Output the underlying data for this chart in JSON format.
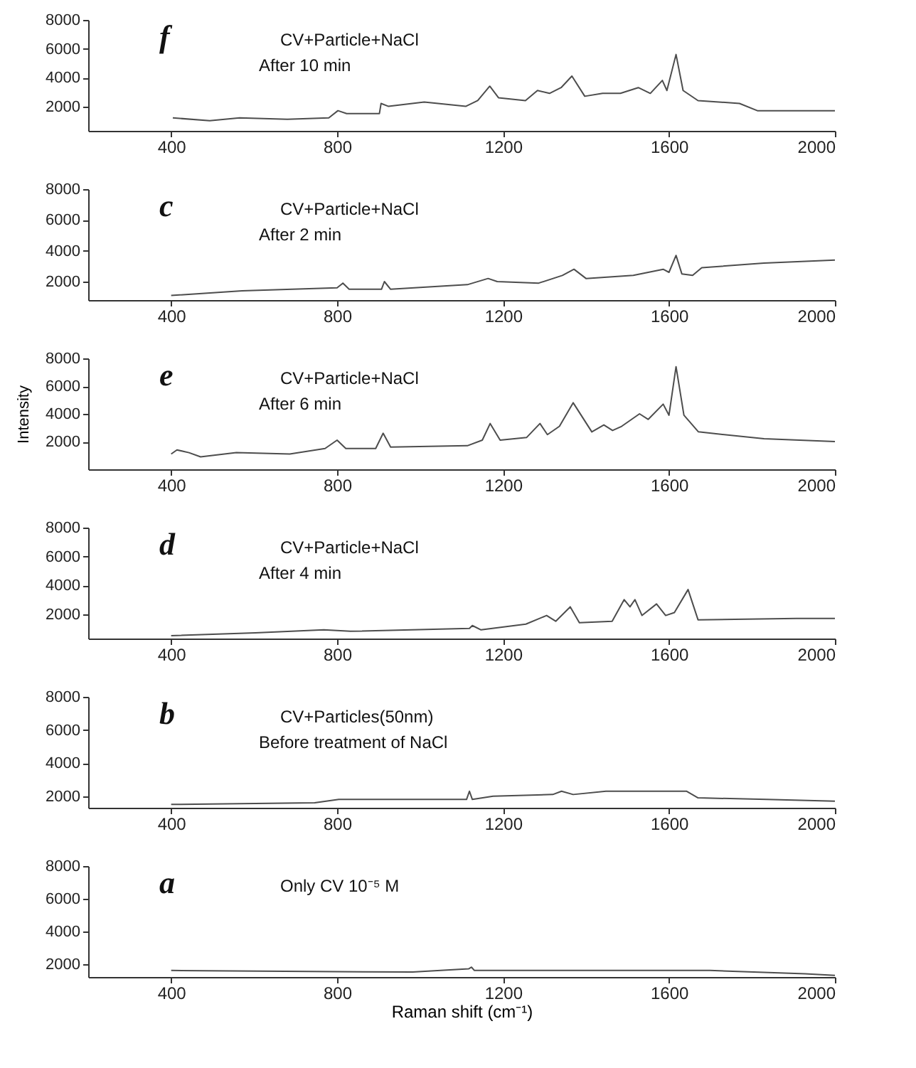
{
  "chart_data": [
    {
      "type": "line",
      "color": "#4d4d4d",
      "annotations": [
        "f",
        "CV+Particle+NaCl",
        "After 10 min"
      ],
      "xlim": [
        200,
        2000
      ],
      "xticks": [
        400,
        800,
        1200,
        1600,
        2000
      ],
      "ylim": [
        300,
        8000
      ],
      "yticks": [
        2000,
        4000,
        6000,
        8000
      ],
      "grid": false,
      "x": [
        404,
        493,
        565,
        680,
        780,
        802,
        823,
        902,
        906,
        924,
        1010,
        1110,
        1139,
        1168,
        1189,
        1254,
        1283,
        1312,
        1340,
        1366,
        1397,
        1440,
        1483,
        1526,
        1555,
        1584,
        1595,
        1617,
        1634,
        1670,
        1770,
        1813,
        1928,
        2000
      ],
      "values": [
        1200,
        1000,
        1200,
        1100,
        1200,
        1700,
        1500,
        1500,
        2200,
        2000,
        2300,
        2000,
        2400,
        3400,
        2600,
        2400,
        3100,
        2900,
        3300,
        4100,
        2700,
        2900,
        2900,
        3300,
        2900,
        3800,
        3100,
        5600,
        3100,
        2400,
        2200,
        1700,
        1700,
        1700
      ]
    },
    {
      "type": "line",
      "color": "#4d4d4d",
      "annotations": [
        "c",
        "CV+Particle+NaCl",
        "After 2 min"
      ],
      "xlim": [
        200,
        2000
      ],
      "xticks": [
        400,
        800,
        1200,
        1600,
        2000
      ],
      "ylim": [
        800,
        8000
      ],
      "yticks": [
        2000,
        4000,
        6000,
        8000
      ],
      "grid": false,
      "x": [
        400,
        571,
        800,
        814,
        829,
        907,
        914,
        929,
        1114,
        1164,
        1186,
        1286,
        1343,
        1371,
        1400,
        1514,
        1586,
        1600,
        1617,
        1631,
        1657,
        1679,
        1829,
        2000
      ],
      "values": [
        1100,
        1400,
        1600,
        1900,
        1500,
        1500,
        2000,
        1500,
        1800,
        2200,
        2000,
        1900,
        2400,
        2800,
        2200,
        2400,
        2800,
        2600,
        3700,
        2500,
        2400,
        2900,
        3200,
        3400
      ]
    },
    {
      "type": "line",
      "color": "#4d4d4d",
      "annotations": [
        "e",
        "CV+Particle+NaCl",
        "After 6 min"
      ],
      "ylabel": "Intensity",
      "xlim": [
        200,
        2000
      ],
      "xticks": [
        400,
        800,
        1200,
        1600,
        2000
      ],
      "ylim": [
        0,
        8000
      ],
      "yticks": [
        2000,
        4000,
        6000,
        8000
      ],
      "grid": false,
      "x": [
        400,
        414,
        443,
        471,
        557,
        686,
        771,
        800,
        821,
        893,
        911,
        929,
        1114,
        1150,
        1169,
        1193,
        1257,
        1289,
        1307,
        1336,
        1369,
        1414,
        1443,
        1464,
        1486,
        1529,
        1550,
        1586,
        1600,
        1617,
        1636,
        1671,
        1829,
        2000
      ],
      "values": [
        1100,
        1400,
        1200,
        900,
        1200,
        1100,
        1500,
        2100,
        1500,
        1500,
        2600,
        1600,
        1700,
        2100,
        3300,
        2100,
        2300,
        3300,
        2500,
        3100,
        4800,
        2700,
        3200,
        2800,
        3100,
        4000,
        3600,
        4700,
        3900,
        7400,
        3900,
        2700,
        2200,
        2000
      ]
    },
    {
      "type": "line",
      "color": "#4d4d4d",
      "annotations": [
        "d",
        "CV+Particle+NaCl",
        "After 4 min"
      ],
      "xlim": [
        200,
        2000
      ],
      "xticks": [
        400,
        800,
        1200,
        1600,
        2000
      ],
      "ylim": [
        300,
        8000
      ],
      "yticks": [
        2000,
        4000,
        6000,
        8000
      ],
      "grid": false,
      "x": [
        400,
        603,
        768,
        832,
        1119,
        1126,
        1147,
        1255,
        1305,
        1327,
        1362,
        1384,
        1463,
        1492,
        1506,
        1518,
        1535,
        1570,
        1592,
        1613,
        1646,
        1670,
        1907,
        2000
      ],
      "values": [
        500,
        700,
        900,
        800,
        1000,
        1200,
        900,
        1300,
        1900,
        1500,
        2500,
        1400,
        1500,
        3000,
        2500,
        3000,
        1900,
        2700,
        1900,
        2100,
        3700,
        1600,
        1700,
        1700
      ]
    },
    {
      "type": "line",
      "color": "#4d4d4d",
      "annotations": [
        "b",
        "CV+Particles(50nm)",
        "Before treatment of NaCl"
      ],
      "xlim": [
        200,
        2000
      ],
      "xticks": [
        400,
        800,
        1200,
        1600,
        2000
      ],
      "ylim": [
        1300,
        8000
      ],
      "yticks": [
        2000,
        4000,
        6000,
        8000
      ],
      "grid": false,
      "x": [
        400,
        746,
        804,
        1112,
        1119,
        1126,
        1176,
        1320,
        1341,
        1369,
        1448,
        1642,
        1670,
        1835,
        2000
      ],
      "values": [
        1500,
        1600,
        1800,
        1800,
        2300,
        1800,
        2000,
        2100,
        2300,
        2100,
        2300,
        2300,
        1900,
        1800,
        1700
      ]
    },
    {
      "type": "line",
      "color": "#4d4d4d",
      "annotations": [
        "a",
        "Only CV 10⁻⁵ M"
      ],
      "xlabel": "Raman shift (cm⁻¹)",
      "xlim": [
        200,
        2000
      ],
      "xticks": [
        400,
        800,
        1200,
        1600,
        2000
      ],
      "ylim": [
        1200,
        8000
      ],
      "yticks": [
        2000,
        4000,
        6000,
        8000
      ],
      "grid": false,
      "x": [
        400,
        982,
        1117,
        1124,
        1131,
        1526,
        1699,
        1928,
        2000
      ],
      "values": [
        1600,
        1500,
        1700,
        1800,
        1600,
        1600,
        1600,
        1400,
        1300
      ]
    }
  ]
}
